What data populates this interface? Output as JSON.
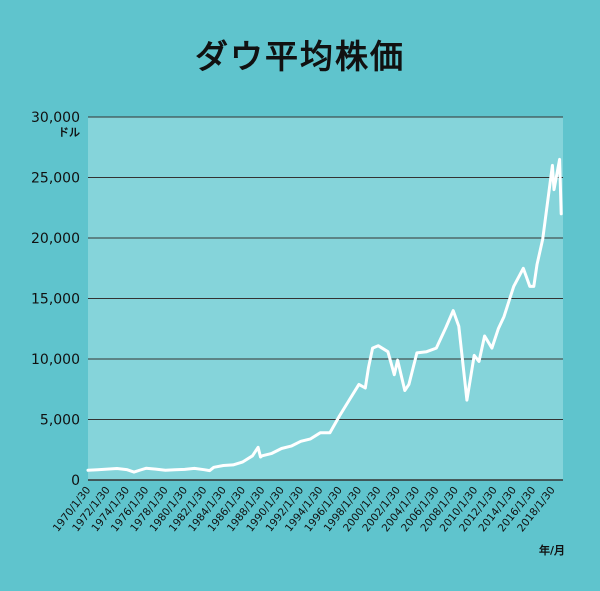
{
  "chart_data": {
    "type": "line",
    "title": "ダウ平均株価",
    "ylabel": "ドル",
    "xlabel": "年/月",
    "ylim": [
      0,
      30000
    ],
    "y_ticks": [
      "0",
      "5,000",
      "10,000",
      "15,000",
      "20,000",
      "25,000",
      "30,000"
    ],
    "x_ticks": [
      "1970/1/30",
      "1972/1/30",
      "1974/1/30",
      "1976/1/30",
      "1978/1/30",
      "1980/1/30",
      "1982/1/30",
      "1984/1/30",
      "1986/1/30",
      "1988/1/30",
      "1990/1/30",
      "1992/1/30",
      "1994/1/30",
      "1996/1/30",
      "1998/1/30",
      "2000/1/30",
      "2002/1/30",
      "2004/1/30",
      "2006/1/30",
      "2008/1/30",
      "2010/1/30",
      "2012/1/30",
      "2014/1/30",
      "2016/1/30",
      "2018/1/30"
    ],
    "grid": true,
    "colors": {
      "line": "#ffffff",
      "plot_bg": "#85d4da",
      "page_bg": "#5fc4cd",
      "grid": "#333333"
    },
    "series": [
      {
        "x": [
          "1970/1",
          "1971/1",
          "1972/1",
          "1973/1",
          "1974/1",
          "1974/10",
          "1975/6",
          "1976/1",
          "1977/1",
          "1978/1",
          "1979/1",
          "1980/1",
          "1981/1",
          "1982/1",
          "1982/8",
          "1983/1",
          "1984/1",
          "1985/1",
          "1986/1",
          "1987/1",
          "1987/8",
          "1987/11",
          "1988/1",
          "1989/1",
          "1990/1",
          "1991/1",
          "1992/1",
          "1993/1",
          "1994/1",
          "1995/1",
          "1996/1",
          "1997/1",
          "1998/1",
          "1998/9",
          "1999/1",
          "1999/6",
          "2000/1",
          "2001/1",
          "2001/9",
          "2002/1",
          "2002/10",
          "2003/3",
          "2004/1",
          "2005/1",
          "2006/1",
          "2007/1",
          "2007/10",
          "2008/5",
          "2009/3",
          "2009/12",
          "2010/6",
          "2011/1",
          "2011/10",
          "2012/6",
          "2013/1",
          "2014/1",
          "2015/1",
          "2015/9",
          "2016/2",
          "2016/6",
          "2017/1",
          "2018/1",
          "2018/3",
          "2018/10",
          "2018/12"
        ],
        "values": [
          800,
          850,
          900,
          950,
          860,
          650,
          830,
          970,
          900,
          800,
          850,
          880,
          960,
          850,
          780,
          1050,
          1200,
          1250,
          1500,
          2000,
          2700,
          1900,
          2000,
          2200,
          2600,
          2800,
          3200,
          3400,
          3900,
          3900,
          5300,
          6600,
          7900,
          7600,
          9300,
          10900,
          11100,
          10600,
          8700,
          9900,
          7400,
          7900,
          10500,
          10600,
          10900,
          12600,
          14000,
          12700,
          6600,
          10300,
          9800,
          11900,
          10900,
          12500,
          13500,
          16000,
          17500,
          16000,
          16000,
          17800,
          19900,
          26000,
          24000,
          26500,
          22000
        ]
      }
    ]
  }
}
